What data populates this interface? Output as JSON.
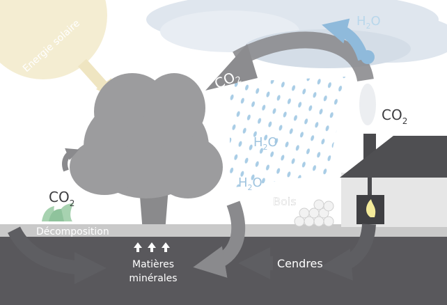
{
  "labels": {
    "solar": "Energie solaire",
    "co2_cloud": [
      "CO",
      "2"
    ],
    "h2o_sky": [
      "H",
      "2",
      "O"
    ],
    "co2_chimney": [
      "CO",
      "2"
    ],
    "h2o_rain_1": [
      "H",
      "2",
      "O"
    ],
    "h2o_rain_2": [
      "H",
      "2",
      "O"
    ],
    "co2_plant": [
      "CO",
      "2"
    ],
    "decomposition": "Décomposition",
    "wood": "Bois",
    "minerals": [
      "Matières",
      "minérales"
    ],
    "ashes": "Cendres"
  }
}
